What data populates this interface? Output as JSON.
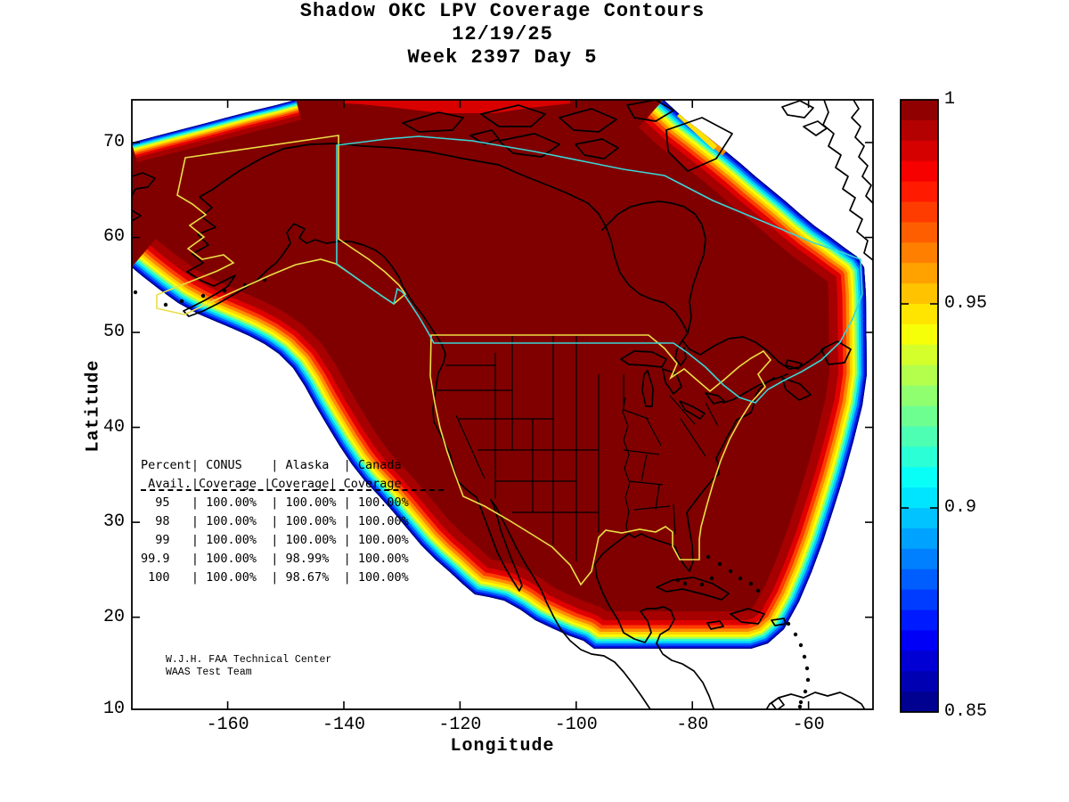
{
  "title": {
    "line1": "Shadow OKC LPV Coverage Contours",
    "line2": "12/19/25",
    "line3": "Week 2397 Day 5"
  },
  "chart_data": {
    "type": "heatmap",
    "title": "Shadow OKC LPV Coverage Contours",
    "date": "12/19/25",
    "gps_week": "Week 2397 Day 5",
    "xlabel": "Longitude",
    "ylabel": "Latitude",
    "xlim": [
      -176.5,
      -48.9
    ],
    "ylim": [
      10.3,
      74.5
    ],
    "xticks": [
      -160,
      -140,
      -120,
      -100,
      -80,
      -60
    ],
    "xtick_labels": [
      "-160",
      "-140",
      "-120",
      "-100",
      "-80",
      "-60"
    ],
    "yticks": [
      10,
      20,
      30,
      40,
      50,
      60,
      70
    ],
    "ytick_labels": [
      "10",
      "20",
      "30",
      "40",
      "50",
      "60",
      "70"
    ],
    "grid": false,
    "legend": "none",
    "colorbar": {
      "position": "right",
      "min": 0.85,
      "max": 1,
      "colormap": "jet",
      "bands": 30,
      "tick_values": [
        1,
        0.95,
        0.9,
        0.85
      ],
      "tick_labels": [
        "1",
        "0.95",
        "0.9",
        "0.85"
      ]
    },
    "region_colors": {
      "max_coverage_fill": "#800000",
      "conus_alaska_boundary": "#EBDE45",
      "canada_boundary": "#3AD6D6",
      "coastline": "#000000",
      "no_coverage_background": "#FFFFFF"
    },
    "coverage_table": {
      "headers": [
        [
          "Percent",
          "Avail."
        ],
        [
          "CONUS",
          "Coverage"
        ],
        [
          "Alaska",
          "Coverage"
        ],
        [
          "Canada",
          "Coverage"
        ]
      ],
      "rows": [
        [
          "95",
          "100.00%",
          "100.00%",
          "100.00%"
        ],
        [
          "98",
          "100.00%",
          "100.00%",
          "100.00%"
        ],
        [
          "99",
          "100.00%",
          "100.00%",
          "100.00%"
        ],
        [
          "99.9",
          "100.00%",
          "98.99%",
          "100.00%"
        ],
        [
          "100",
          "100.00%",
          "98.67%",
          "100.00%"
        ]
      ]
    },
    "annotation": [
      "W.J.H. FAA Technical Center",
      "WAAS Test Team"
    ]
  },
  "annotation": {
    "line1": "W.J.H. FAA Technical Center",
    "line2": "WAAS Test Team"
  }
}
